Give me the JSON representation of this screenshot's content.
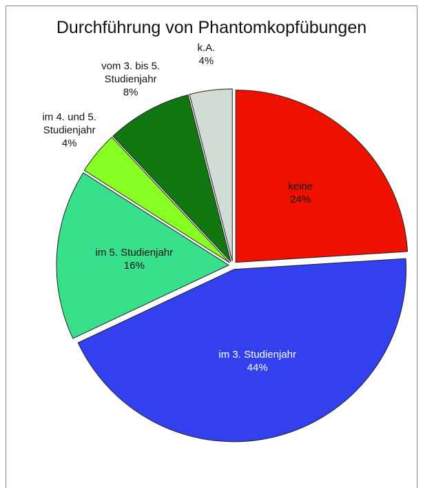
{
  "chart_data": {
    "type": "pie",
    "title": "Durchführung von Phantomkopfübungen",
    "categories": [
      "keine",
      "im 3. Studienjahr",
      "im 5. Studienjahr",
      "im 4. und 5. Studienjahr",
      "vom 3. bis 5. Studienjahr",
      "k.A."
    ],
    "values": [
      24,
      44,
      16,
      4,
      8,
      4
    ],
    "value_labels": [
      "24%",
      "44%",
      "16%",
      "4%",
      "8%",
      "4%"
    ],
    "colors": [
      "#ee1100",
      "#3340ee",
      "#38e08c",
      "#88ff22",
      "#117711",
      "#d0dcd4"
    ],
    "label_colors": [
      "#111111",
      "#ffffff",
      "#111111",
      "#111111",
      "#111111",
      "#111111"
    ]
  }
}
